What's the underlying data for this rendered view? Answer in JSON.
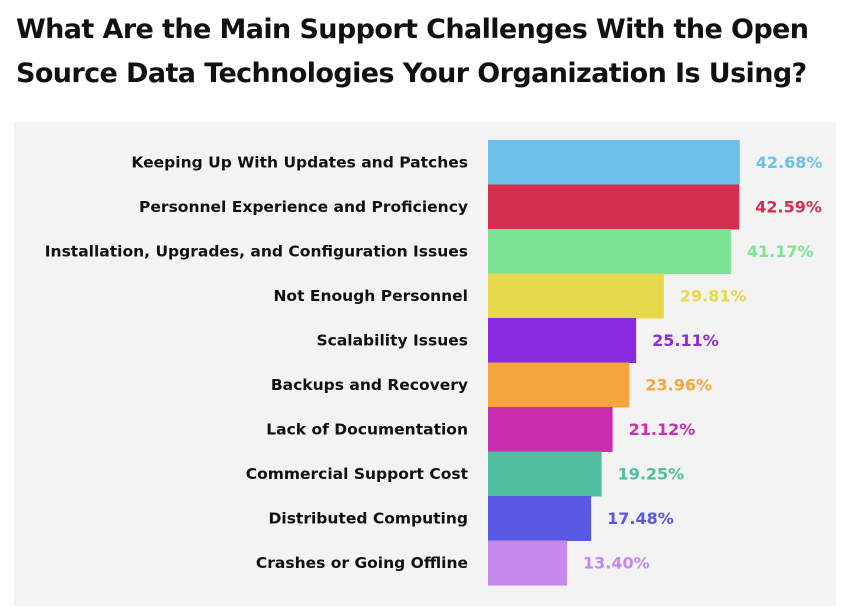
{
  "title_line1": "What Are the Main Support Challenges With the Open",
  "title_line2": "Source Data Technologies Your Organization Is Using?",
  "chart_data": {
    "type": "bar",
    "orientation": "horizontal",
    "title": "What Are the Main Support Challenges With the Open Source Data Technologies Your Organization Is Using?",
    "categories": [
      "Keeping Up With Updates and Patches",
      "Personnel Experience and Proficiency",
      "Installation, Upgrades, and Configuration Issues",
      "Not Enough Personnel",
      "Scalability Issues",
      "Backups and Recovery",
      "Lack of Documentation",
      "Commercial Support Cost",
      "Distributed Computing",
      "Crashes or Going Offline"
    ],
    "values": [
      42.68,
      42.59,
      41.17,
      29.81,
      25.11,
      23.96,
      21.12,
      19.25,
      17.48,
      13.4
    ],
    "value_labels": [
      "42.68%",
      "42.59%",
      "41.17%",
      "29.81%",
      "25.11%",
      "23.96%",
      "21.12%",
      "19.25%",
      "17.48%",
      "13.40%"
    ],
    "colors": [
      "#6dc0e8",
      "#d42e4e",
      "#7ce495",
      "#e5d84a",
      "#8a2be2",
      "#f4a63c",
      "#c92eae",
      "#4fbe9e",
      "#5858e2",
      "#c589ee"
    ],
    "xlim": [
      0,
      100
    ],
    "grid": false,
    "legend": "none"
  }
}
